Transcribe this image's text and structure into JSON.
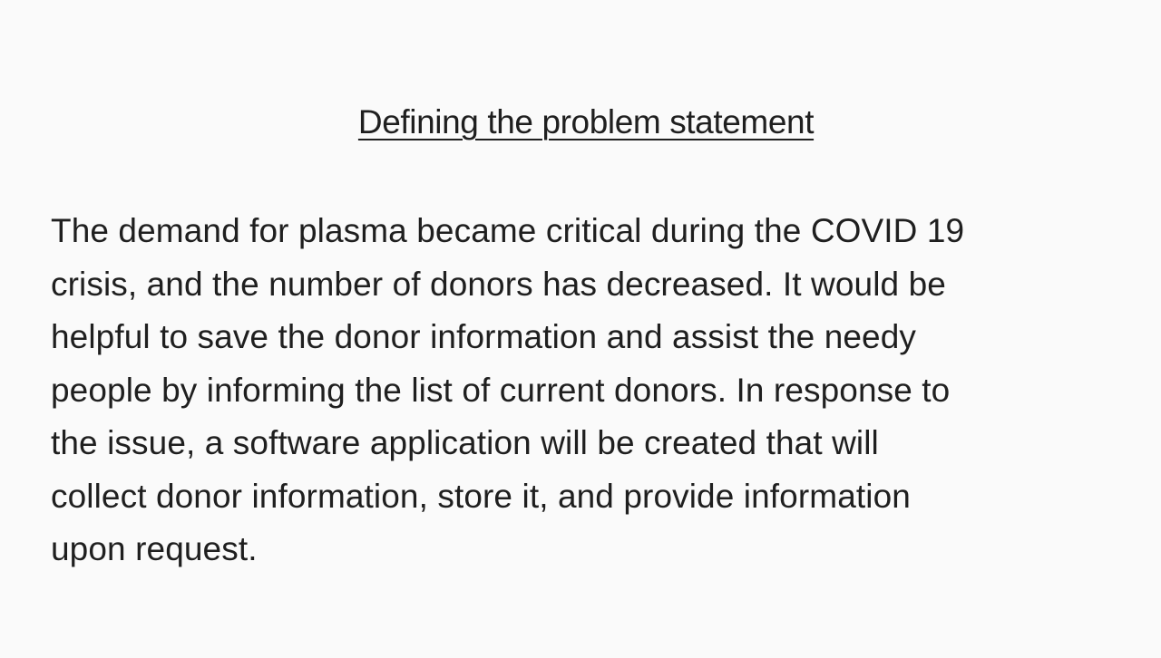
{
  "document": {
    "title": "Defining the problem statement",
    "paragraph_lines": [
      "The demand for plasma became critical during the COVID 19",
      "crisis, and the number of donors has decreased. It would be",
      "helpful to save the donor information and assist the needy",
      "people by informing the list of current donors. In response to",
      "the issue, a software application will be created that will",
      "collect donor information, store it, and provide information",
      "upon request."
    ]
  }
}
